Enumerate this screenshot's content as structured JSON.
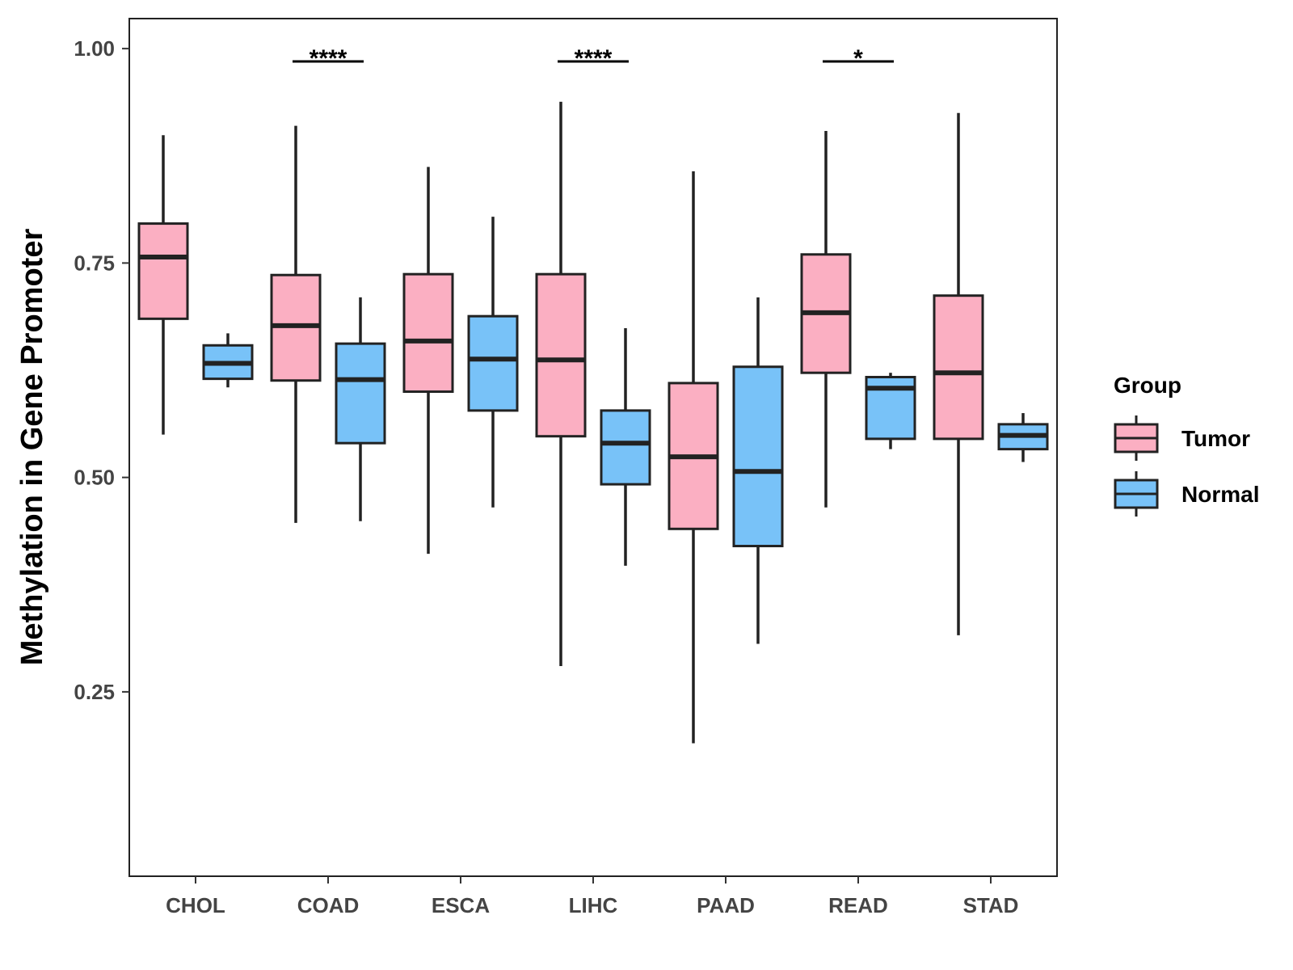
{
  "chart_data": {
    "type": "boxplot",
    "title": "",
    "xlabel": "",
    "ylabel": "Methylation in Gene Promoter",
    "ylim": [
      0.035,
      1.035
    ],
    "yticks": [
      0.25,
      0.5,
      0.75,
      1.0
    ],
    "ytick_labels": [
      "0.25",
      "0.50",
      "0.75",
      "1.00"
    ],
    "categories": [
      "CHOL",
      "COAD",
      "ESCA",
      "LIHC",
      "PAAD",
      "READ",
      "STAD"
    ],
    "series": [
      {
        "name": "Tumor",
        "color": "#FBAFC2",
        "boxes": [
          {
            "min": 0.55,
            "q1": 0.685,
            "median": 0.757,
            "q3": 0.796,
            "max": 0.899
          },
          {
            "min": 0.447,
            "q1": 0.613,
            "median": 0.677,
            "q3": 0.736,
            "max": 0.91
          },
          {
            "min": 0.411,
            "q1": 0.6,
            "median": 0.659,
            "q3": 0.737,
            "max": 0.862
          },
          {
            "min": 0.28,
            "q1": 0.548,
            "median": 0.637,
            "q3": 0.737,
            "max": 0.938
          },
          {
            "min": 0.19,
            "q1": 0.44,
            "median": 0.524,
            "q3": 0.61,
            "max": 0.857
          },
          {
            "min": 0.465,
            "q1": 0.622,
            "median": 0.692,
            "q3": 0.76,
            "max": 0.904
          },
          {
            "min": 0.316,
            "q1": 0.545,
            "median": 0.622,
            "q3": 0.712,
            "max": 0.925
          }
        ]
      },
      {
        "name": "Normal",
        "color": "#78C2F8",
        "boxes": [
          {
            "min": 0.605,
            "q1": 0.615,
            "median": 0.633,
            "q3": 0.654,
            "max": 0.668
          },
          {
            "min": 0.449,
            "q1": 0.54,
            "median": 0.614,
            "q3": 0.656,
            "max": 0.71
          },
          {
            "min": 0.465,
            "q1": 0.578,
            "median": 0.638,
            "q3": 0.688,
            "max": 0.804
          },
          {
            "min": 0.397,
            "q1": 0.492,
            "median": 0.54,
            "q3": 0.578,
            "max": 0.674
          },
          {
            "min": 0.306,
            "q1": 0.42,
            "median": 0.507,
            "q3": 0.629,
            "max": 0.71
          },
          {
            "min": 0.533,
            "q1": 0.545,
            "median": 0.604,
            "q3": 0.617,
            "max": 0.622
          },
          {
            "min": 0.518,
            "q1": 0.533,
            "median": 0.549,
            "q3": 0.562,
            "max": 0.575
          }
        ]
      }
    ],
    "significance": [
      {
        "category": "COAD",
        "label": "****",
        "y": 0.985
      },
      {
        "category": "LIHC",
        "label": "****",
        "y": 0.985
      },
      {
        "category": "READ",
        "label": "*",
        "y": 0.985
      }
    ],
    "legend": {
      "title": "Group",
      "position": "right",
      "entries": [
        "Tumor",
        "Normal"
      ]
    },
    "grid": false
  }
}
